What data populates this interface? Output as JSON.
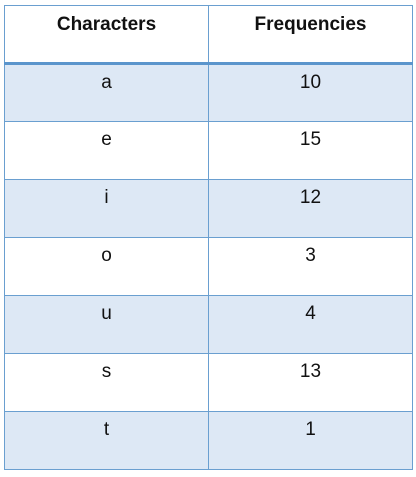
{
  "table": {
    "headers": [
      "Characters",
      "Frequencies"
    ],
    "rows": [
      {
        "character": "a",
        "frequency": "10"
      },
      {
        "character": "e",
        "frequency": "15"
      },
      {
        "character": "i",
        "frequency": "12"
      },
      {
        "character": "o",
        "frequency": "3"
      },
      {
        "character": "u",
        "frequency": "4"
      },
      {
        "character": "s",
        "frequency": "13"
      },
      {
        "character": "t",
        "frequency": "1"
      }
    ]
  },
  "colors": {
    "border": "#6a9fd0",
    "header_rule": "#5b95cc",
    "shaded_row": "#dde8f5",
    "plain_row": "#ffffff"
  }
}
